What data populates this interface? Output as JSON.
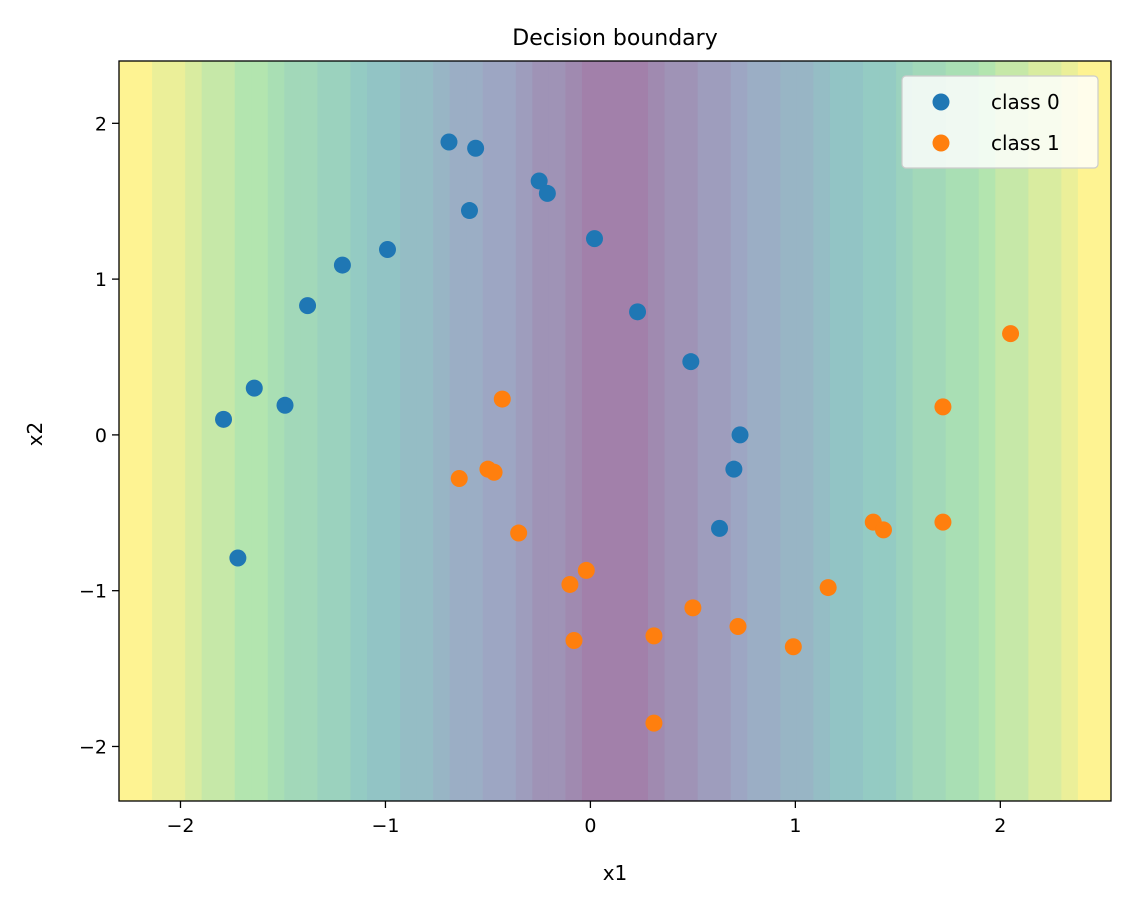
{
  "chart_data": {
    "type": "scatter",
    "title": "Decision boundary",
    "xlabel": "x1",
    "ylabel": "x2",
    "xlim": [
      -2.3,
      2.54
    ],
    "ylim": [
      -2.35,
      2.4
    ],
    "xticks": [
      -2,
      -1,
      0,
      1,
      2
    ],
    "yticks": [
      -2,
      -1,
      0,
      1,
      2
    ],
    "grid": false,
    "legend_position": "top-right",
    "background": {
      "type": "contour",
      "colormap": "viridis",
      "alpha": 0.5,
      "boundary_center_x": 0.13,
      "boundary_half_width": 2.4,
      "bands": 18
    },
    "series": [
      {
        "name": "class 0",
        "color": "#1f77b4",
        "points": [
          [
            -0.69,
            1.88
          ],
          [
            -0.56,
            1.84
          ],
          [
            -0.25,
            1.63
          ],
          [
            -0.21,
            1.55
          ],
          [
            -0.59,
            1.44
          ],
          [
            0.02,
            1.26
          ],
          [
            -0.99,
            1.19
          ],
          [
            -1.21,
            1.09
          ],
          [
            -1.38,
            0.83
          ],
          [
            0.23,
            0.79
          ],
          [
            0.49,
            0.47
          ],
          [
            -1.64,
            0.3
          ],
          [
            -1.49,
            0.19
          ],
          [
            -1.79,
            0.1
          ],
          [
            0.73,
            0.0
          ],
          [
            0.7,
            -0.22
          ],
          [
            0.63,
            -0.6
          ],
          [
            -1.72,
            -0.79
          ]
        ]
      },
      {
        "name": "class 1",
        "color": "#ff7f0e",
        "points": [
          [
            2.05,
            0.65
          ],
          [
            -0.43,
            0.23
          ],
          [
            1.72,
            0.18
          ],
          [
            -0.5,
            -0.22
          ],
          [
            -0.47,
            -0.24
          ],
          [
            -0.64,
            -0.28
          ],
          [
            1.38,
            -0.56
          ],
          [
            1.72,
            -0.56
          ],
          [
            1.43,
            -0.61
          ],
          [
            -0.35,
            -0.63
          ],
          [
            -0.02,
            -0.87
          ],
          [
            -0.1,
            -0.96
          ],
          [
            1.16,
            -0.98
          ],
          [
            0.5,
            -1.11
          ],
          [
            0.72,
            -1.23
          ],
          [
            0.31,
            -1.29
          ],
          [
            -0.08,
            -1.32
          ],
          [
            0.99,
            -1.36
          ],
          [
            0.31,
            -1.85
          ]
        ]
      }
    ]
  }
}
